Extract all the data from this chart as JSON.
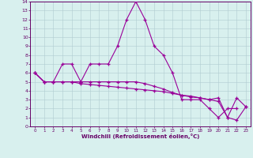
{
  "xlabel": "Windchill (Refroidissement éolien,°C)",
  "background_color": "#d8f0ee",
  "line_color": "#990099",
  "grid_color": "#b0ccd0",
  "xlim_min": -0.5,
  "xlim_max": 23.5,
  "ylim_min": 0,
  "ylim_max": 14,
  "xticks": [
    0,
    1,
    2,
    3,
    4,
    5,
    6,
    7,
    8,
    9,
    10,
    11,
    12,
    13,
    14,
    15,
    16,
    17,
    18,
    19,
    20,
    21,
    22,
    23
  ],
  "yticks": [
    0,
    1,
    2,
    3,
    4,
    5,
    6,
    7,
    8,
    9,
    10,
    11,
    12,
    13,
    14
  ],
  "series1_x": [
    0,
    1,
    2,
    3,
    4,
    5,
    6,
    7,
    8,
    9,
    10,
    11,
    12,
    13,
    14,
    15,
    16,
    17,
    18,
    19,
    20,
    21,
    22
  ],
  "series1_y": [
    6,
    5,
    5,
    7,
    7,
    5,
    7,
    7,
    7,
    9,
    12,
    14,
    12,
    9,
    8,
    6,
    3,
    3,
    3,
    2,
    1,
    2,
    2
  ],
  "series2_x": [
    0,
    1,
    2,
    3,
    4,
    5,
    6,
    7,
    8,
    9,
    10,
    11,
    12,
    13,
    14,
    15,
    16,
    17,
    18,
    19,
    20,
    21,
    22,
    23
  ],
  "series2_y": [
    6,
    5,
    5,
    5,
    5,
    5,
    5,
    5,
    5,
    5,
    5,
    5,
    4.8,
    4.5,
    4.2,
    3.8,
    3.5,
    3.3,
    3.2,
    3.0,
    3.2,
    1.0,
    3.2,
    2.2
  ],
  "series3_x": [
    0,
    1,
    2,
    3,
    4,
    5,
    6,
    7,
    8,
    9,
    10,
    11,
    12,
    13,
    14,
    15,
    16,
    17,
    18,
    19,
    20,
    21,
    22,
    23
  ],
  "series3_y": [
    6,
    5,
    5,
    5,
    5,
    4.8,
    4.7,
    4.6,
    4.5,
    4.4,
    4.3,
    4.2,
    4.1,
    4.0,
    3.9,
    3.7,
    3.5,
    3.4,
    3.2,
    3.0,
    2.8,
    1.0,
    0.7,
    2.2
  ]
}
